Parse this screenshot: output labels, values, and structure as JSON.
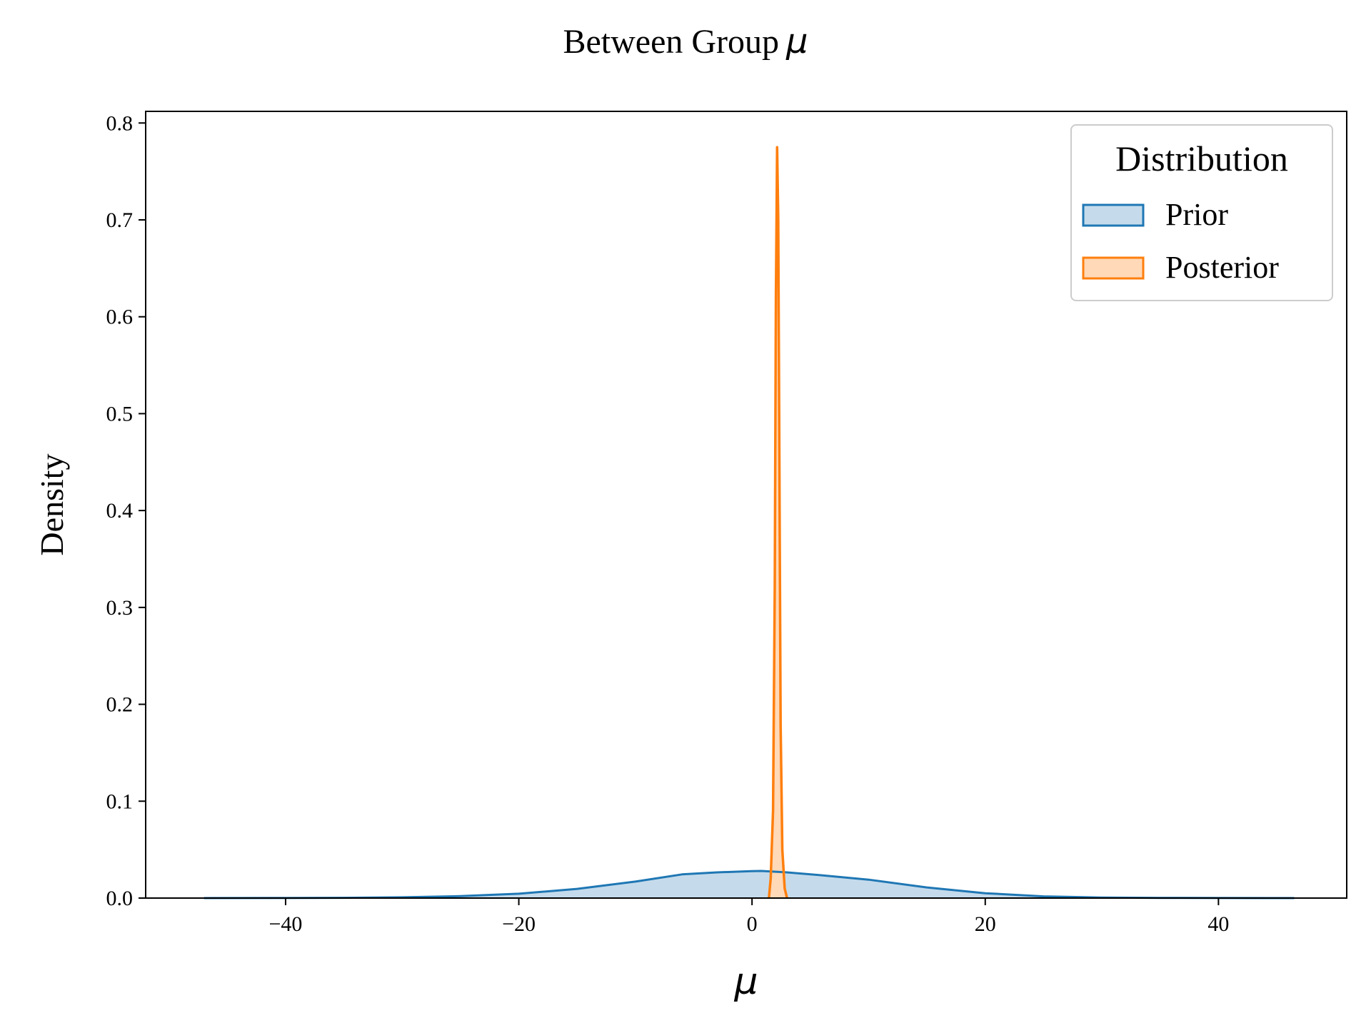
{
  "chart_data": {
    "type": "area",
    "title": "Between Group",
    "title_symbol": "μ",
    "xlabel": "μ",
    "ylabel": "Density",
    "xlim": [
      -52,
      51
    ],
    "ylim": [
      0,
      0.812
    ],
    "xticks": [
      -40,
      -20,
      0,
      20,
      40
    ],
    "xtick_labels": [
      "−40",
      "−20",
      "0",
      "20",
      "40"
    ],
    "yticks": [
      0.0,
      0.1,
      0.2,
      0.3,
      0.4,
      0.5,
      0.6,
      0.7,
      0.8
    ],
    "ytick_labels": [
      "0.0",
      "0.1",
      "0.2",
      "0.3",
      "0.4",
      "0.5",
      "0.6",
      "0.7",
      "0.8"
    ],
    "grid": false,
    "legend": {
      "title": "Distribution",
      "placement": "top-right"
    },
    "series": [
      {
        "name": "Prior",
        "color": "#1f77b4",
        "fill": "#c5dbec",
        "x": [
          -47,
          -40,
          -35,
          -30,
          -25,
          -20,
          -15,
          -10,
          -6,
          -3,
          0,
          0.8,
          3,
          6,
          10,
          15,
          20,
          25,
          30,
          35,
          40,
          46.5
        ],
        "y": [
          0.0,
          0.0001,
          0.0003,
          0.0008,
          0.002,
          0.0045,
          0.0095,
          0.017,
          0.0245,
          0.0265,
          0.0278,
          0.028,
          0.0265,
          0.0235,
          0.019,
          0.011,
          0.005,
          0.0018,
          0.0006,
          0.0002,
          0.0001,
          0.0
        ]
      },
      {
        "name": "Posterior",
        "color": "#ff7f0e",
        "fill": "#ffd9b8",
        "x": [
          1.45,
          1.6,
          1.8,
          1.95,
          2.05,
          2.15,
          2.25,
          2.35,
          2.45,
          2.6,
          2.8,
          3.0
        ],
        "y": [
          0.0,
          0.02,
          0.09,
          0.32,
          0.62,
          0.775,
          0.7,
          0.45,
          0.18,
          0.05,
          0.01,
          0.0
        ]
      }
    ]
  }
}
